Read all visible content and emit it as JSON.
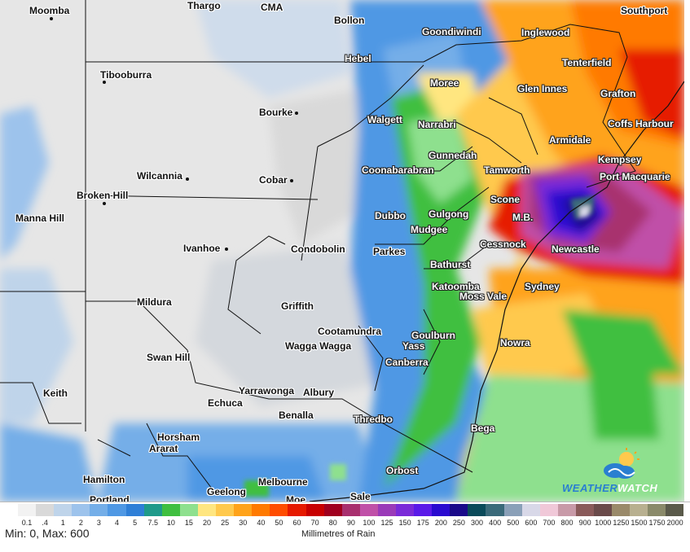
{
  "map": {
    "places": [
      {
        "name": "Moomba"
      },
      {
        "name": "Thargo"
      },
      {
        "name": "CMA"
      },
      {
        "name": "Bollon"
      },
      {
        "name": "Southport"
      },
      {
        "name": "Goondiwindi"
      },
      {
        "name": "Inglewood"
      },
      {
        "name": "Hebel"
      },
      {
        "name": "Tenterfield"
      },
      {
        "name": "Tibooburra"
      },
      {
        "name": "Moree"
      },
      {
        "name": "Glen Innes"
      },
      {
        "name": "Grafton"
      },
      {
        "name": "Bourke"
      },
      {
        "name": "Walgett"
      },
      {
        "name": "Narrabri"
      },
      {
        "name": "Coffs Harbour"
      },
      {
        "name": "Armidale"
      },
      {
        "name": "Gunnedah"
      },
      {
        "name": "Kempsey"
      },
      {
        "name": "Coonabarabran"
      },
      {
        "name": "Tamworth"
      },
      {
        "name": "Wilcannia"
      },
      {
        "name": "Cobar"
      },
      {
        "name": "Port Macquarie"
      },
      {
        "name": "Broken Hill"
      },
      {
        "name": "Scone"
      },
      {
        "name": "Dubbo"
      },
      {
        "name": "Gulgong"
      },
      {
        "name": "M.B."
      },
      {
        "name": "Manna Hill"
      },
      {
        "name": "Mudgee"
      },
      {
        "name": "Cessnock"
      },
      {
        "name": "Ivanhoe"
      },
      {
        "name": "Condobolin"
      },
      {
        "name": "Parkes"
      },
      {
        "name": "Newcastle"
      },
      {
        "name": "Bathurst"
      },
      {
        "name": "Katoomba"
      },
      {
        "name": "Sydney"
      },
      {
        "name": "Mildura"
      },
      {
        "name": "Griffith"
      },
      {
        "name": "Moss Vale"
      },
      {
        "name": "Cootamundra"
      },
      {
        "name": "Goulburn"
      },
      {
        "name": "Nowra"
      },
      {
        "name": "Wagga Wagga"
      },
      {
        "name": "Yass"
      },
      {
        "name": "Swan Hill"
      },
      {
        "name": "Canberra"
      },
      {
        "name": "Yarrawonga"
      },
      {
        "name": "Albury"
      },
      {
        "name": "Keith"
      },
      {
        "name": "Echuca"
      },
      {
        "name": "Benalla"
      },
      {
        "name": "Thredbo"
      },
      {
        "name": "Bega"
      },
      {
        "name": "Horsham"
      },
      {
        "name": "Ararat"
      },
      {
        "name": "Orbost"
      },
      {
        "name": "Hamilton"
      },
      {
        "name": "Melbourne"
      },
      {
        "name": "Geelong"
      },
      {
        "name": "Portland"
      },
      {
        "name": "Moe"
      },
      {
        "name": "Sale"
      }
    ]
  },
  "legend": {
    "min_max": "Min: 0, Max: 600",
    "units": "Millimetres of Rain",
    "bins": [
      {
        "label": "0.1",
        "color": "#f2f2f2"
      },
      {
        "label": ".4",
        "color": "#d9d9d9"
      },
      {
        "label": "1",
        "color": "#bfd4ea"
      },
      {
        "label": "2",
        "color": "#9dc3ec"
      },
      {
        "label": "3",
        "color": "#74aee8"
      },
      {
        "label": "4",
        "color": "#4f98e4"
      },
      {
        "label": "5",
        "color": "#2f7fd7"
      },
      {
        "label": "7.5",
        "color": "#1f9a8a"
      },
      {
        "label": "10",
        "color": "#3fbf3f"
      },
      {
        "label": "15",
        "color": "#8ee08e"
      },
      {
        "label": "20",
        "color": "#ffe680"
      },
      {
        "label": "25",
        "color": "#ffc94d"
      },
      {
        "label": "30",
        "color": "#ffa31a"
      },
      {
        "label": "40",
        "color": "#ff7a00"
      },
      {
        "label": "50",
        "color": "#ff4d00"
      },
      {
        "label": "60",
        "color": "#e61a00"
      },
      {
        "label": "70",
        "color": "#c80000"
      },
      {
        "label": "80",
        "color": "#a0001e"
      },
      {
        "label": "90",
        "color": "#a8306e"
      },
      {
        "label": "100",
        "color": "#c050a8"
      },
      {
        "label": "125",
        "color": "#9a3ab8"
      },
      {
        "label": "150",
        "color": "#7a2ad8"
      },
      {
        "label": "175",
        "color": "#5a1ae8"
      },
      {
        "label": "200",
        "color": "#2a0ad0"
      },
      {
        "label": "250",
        "color": "#1a0a8a"
      },
      {
        "label": "300",
        "color": "#0a4a5a"
      },
      {
        "label": "400",
        "color": "#3a6a7a"
      },
      {
        "label": "500",
        "color": "#8aa0b8"
      },
      {
        "label": "600",
        "color": "#d8d8e8"
      },
      {
        "label": "700",
        "color": "#f0c8d8"
      },
      {
        "label": "800",
        "color": "#c89aa8"
      },
      {
        "label": "900",
        "color": "#8a5a5a"
      },
      {
        "label": "1000",
        "color": "#6a4a4a"
      },
      {
        "label": "1250",
        "color": "#9a8a6a"
      },
      {
        "label": "1500",
        "color": "#b8b090"
      },
      {
        "label": "1750",
        "color": "#8a8a6a"
      },
      {
        "label": "2000",
        "color": "#5a5a4a"
      }
    ]
  },
  "logo": {
    "part1": "WEATHER",
    "part2": "WATCH"
  }
}
